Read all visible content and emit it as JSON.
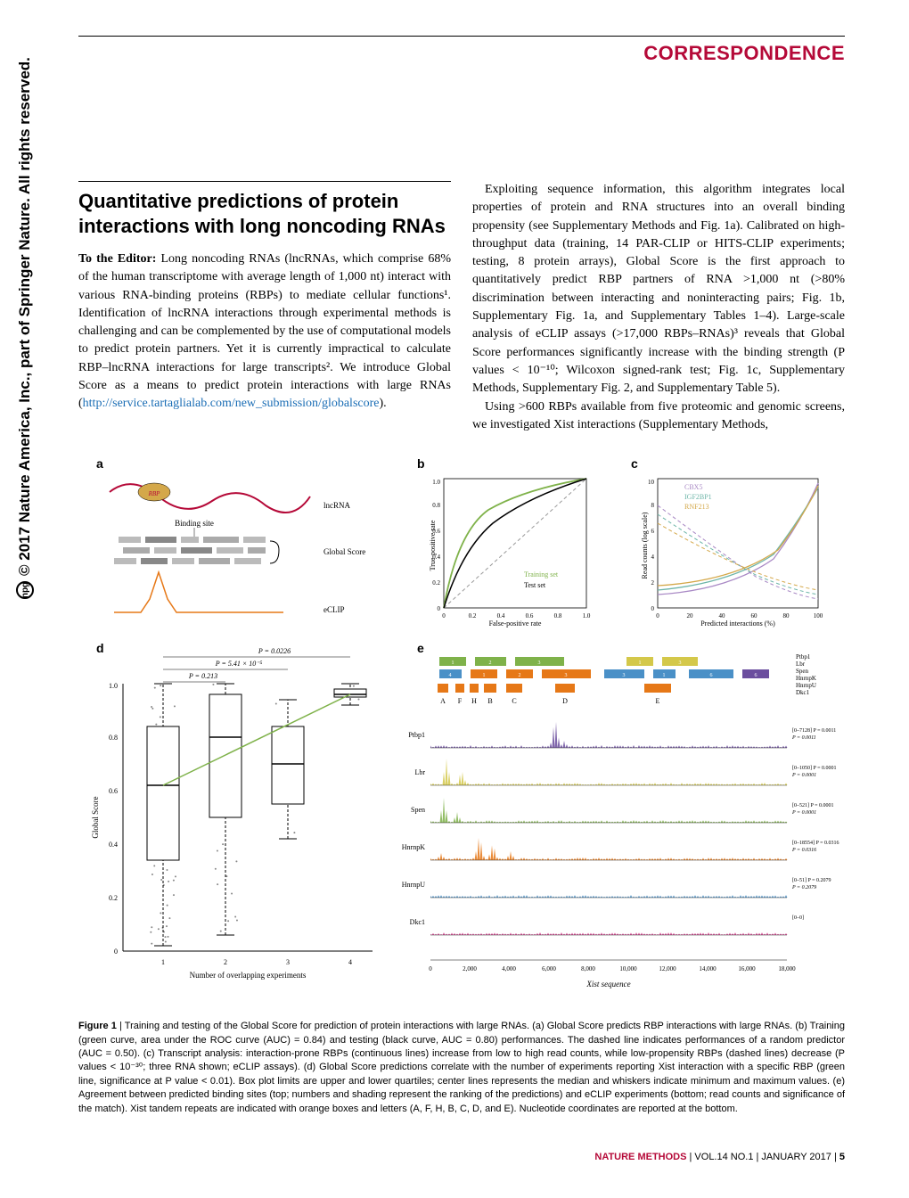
{
  "copyright": "© 2017 Nature America, Inc., part of Springer Nature. All rights reserved.",
  "header_label": "CORRESPONDENCE",
  "title": "Quantitative predictions of protein interactions with long noncoding RNAs",
  "para1_lead": "To the Editor:",
  "para1": " Long noncoding RNAs (lncRNAs, which comprise 68% of the human transcriptome with average length of 1,000 nt) interact with various RNA-binding proteins (RBPs) to mediate cellular functions¹. Identification of lncRNA interactions through experimental methods is challenging and can be complemented by the use of computational models to predict protein partners. Yet it is currently impractical to calculate RBP–lncRNA interactions for large transcripts². We introduce Global Score as a means to predict protein interactions with large RNAs (",
  "link1": "http://service.tartaglialab.com/new_submission/globalscore",
  "para1_end": ").",
  "para2": "Exploiting sequence information, this algorithm integrates local properties of protein and RNA structures into an overall binding propensity (see Supplementary Methods and Fig. 1a). Calibrated on high-throughput data (training, 14 PAR-CLIP or HITS-CLIP experiments; testing, 8 protein arrays), Global Score is the first approach to quantitatively predict RBP partners of RNA >1,000 nt (>80% discrimination between interacting and noninteracting pairs; Fig. 1b, Supplementary Fig. 1a, and Supplementary Tables 1–4). Large-scale analysis of eCLIP assays (>17,000 RBPs–RNAs)³ reveals that Global Score performances significantly increase with the binding strength (P values < 10⁻¹⁰; Wilcoxon signed-rank test; Fig. 1c, Supplementary Methods, Supplementary Fig. 2, and Supplementary Table 5).",
  "para3": "Using >600 RBPs available from five proteomic and genomic screens, we investigated Xist interactions (Supplementary Methods,",
  "figure": {
    "panels": [
      "a",
      "b",
      "c",
      "d",
      "e"
    ],
    "a": {
      "labels": [
        "RBP",
        "lncRNA",
        "Binding site",
        "Global Score",
        "eCLIP"
      ]
    },
    "b": {
      "ylabel": "True-positive rate",
      "xlabel": "False-positive rate",
      "ticks": [
        "0",
        "0.2",
        "0.4",
        "0.6",
        "0.8",
        "1.0"
      ],
      "legend": [
        "Training set",
        "Test set"
      ],
      "train_color": "#7fb24a",
      "test_color": "#000000",
      "random_color": "#999999"
    },
    "c": {
      "ylabel": "Read counts (log scale)",
      "xlabel": "Predicted interactions (%)",
      "xticks": [
        "0",
        "20",
        "40",
        "60",
        "80",
        "100"
      ],
      "yticks": [
        "0",
        "2",
        "4",
        "6",
        "8",
        "10"
      ],
      "rbps": [
        "CBX5",
        "IGF2BP1",
        "RNF213"
      ],
      "colors": [
        "#a989c5",
        "#6db5a8",
        "#d4a84a"
      ]
    },
    "d": {
      "ylabel": "Global Score",
      "xlabel": "Number of overlapping experiments",
      "xticks": [
        "1",
        "2",
        "3",
        "4"
      ],
      "yticks": [
        "0",
        "0.2",
        "0.4",
        "0.6",
        "0.8",
        "1.0"
      ],
      "pvals": [
        "P = 0.0226",
        "P = 5.41 × 10⁻⁵",
        "P = 0.213"
      ],
      "box_medians": [
        0.62,
        0.8,
        0.7,
        0.96
      ],
      "box_q1": [
        0.34,
        0.5,
        0.55,
        0.95
      ],
      "box_q3": [
        0.84,
        0.96,
        0.84,
        0.98
      ],
      "box_min": [
        0.02,
        0.06,
        0.42,
        0.92
      ],
      "box_max": [
        1.0,
        1.0,
        0.94,
        1.0
      ]
    },
    "e": {
      "tracks": [
        "Ptbp1",
        "Lbr",
        "Spen",
        "HnrnpK",
        "HnrnpU",
        "Dkc1"
      ],
      "track_colors": [
        "#6b4e9e",
        "#d4c84a",
        "#7fb24a",
        "#e67817",
        "#4a90c7",
        "#d43a8a"
      ],
      "xlabel": "Xist sequence",
      "xticks": [
        "0",
        "2,000",
        "4,000",
        "6,000",
        "8,000",
        "10,000",
        "12,000",
        "14,000",
        "16,000",
        "18,000"
      ],
      "repeats": [
        "A",
        "F",
        "H",
        "B",
        "C",
        "D",
        "E"
      ],
      "stats": [
        "[0–7128]\nP = 0.0011",
        "[0–1050]\nP = 0.0001",
        "[0–521]\nP = 0.0001",
        "[0–18554]\nP = 0.0316",
        "[0–51]\nP = 0.2079",
        "[0–0]"
      ]
    }
  },
  "caption_lead": "Figure 1",
  "caption": " | Training and testing of the Global Score for prediction of protein interactions with large RNAs. (a) Global Score predicts RBP interactions with large RNAs. (b) Training (green curve, area under the ROC curve (AUC) = 0.84) and testing (black curve, AUC = 0.80) performances. The dashed line indicates performances of a random predictor (AUC = 0.50). (c) Transcript analysis: interaction-prone RBPs (continuous lines) increase from low to high read counts, while low-propensity RBPs (dashed lines) decrease (P values < 10⁻³⁰; three RNA shown; eCLIP assays). (d) Global Score predictions correlate with the number of experiments reporting Xist interaction with a specific RBP (green line, significance at P value < 0.01). Box plot limits are upper and lower quartiles; center lines represents the median and whiskers indicate minimum and maximum values. (e) Agreement between predicted binding sites (top; numbers and shading represent the ranking of the predictions) and eCLIP experiments (bottom; read counts and significance of the match). Xist tandem repeats are indicated with orange boxes and letters (A, F, H, B, C, D, and E). Nucleotide coordinates are reported at the bottom.",
  "footer": {
    "journal": "NATURE METHODS",
    "issue": " | VOL.14 NO.1 | JANUARY 2017 | ",
    "page": "5"
  }
}
